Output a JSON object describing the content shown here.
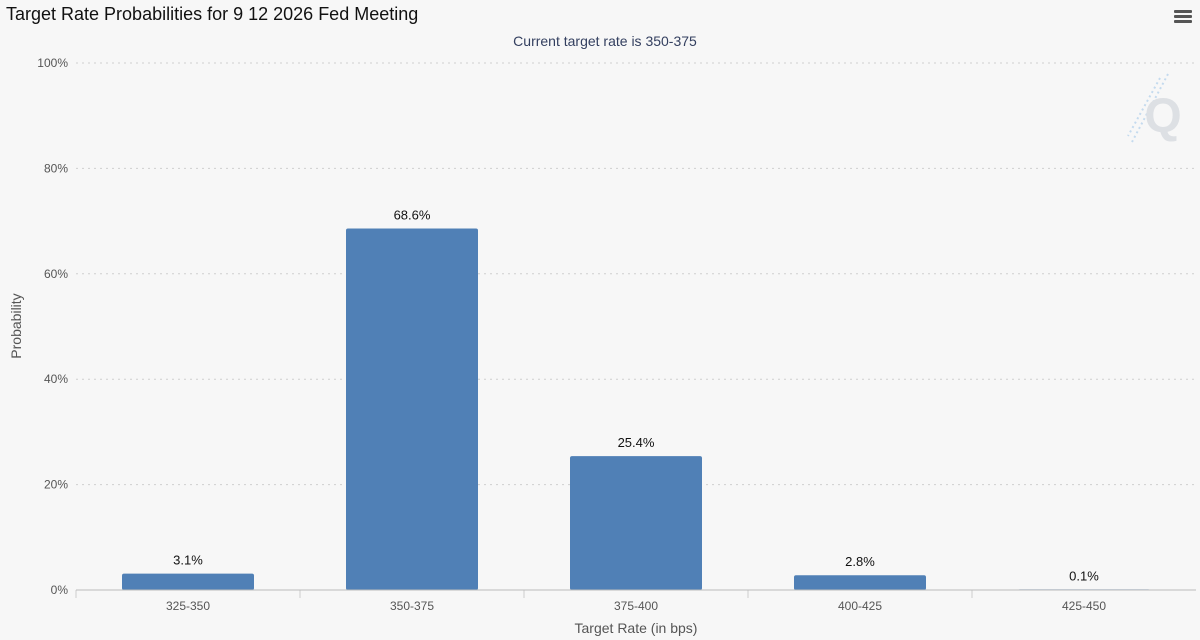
{
  "chart_data": {
    "type": "bar",
    "title": "Target Rate Probabilities for 9 12 2026 Fed Meeting",
    "subtitle": "Current target rate is 350-375",
    "xlabel": "Target Rate (in bps)",
    "ylabel": "Probability",
    "categories": [
      "325-350",
      "350-375",
      "375-400",
      "400-425",
      "425-450"
    ],
    "values": [
      3.1,
      68.6,
      25.4,
      2.8,
      0.1
    ],
    "value_labels": [
      "3.1%",
      "68.6%",
      "25.4%",
      "2.8%",
      "0.1%"
    ],
    "ylim": [
      0,
      100
    ],
    "yticks": [
      0,
      20,
      40,
      60,
      80,
      100
    ],
    "ytick_labels": [
      "0%",
      "20%",
      "40%",
      "60%",
      "80%",
      "100%"
    ],
    "grid": true,
    "bar_color": "#5080b6",
    "legend": "none"
  },
  "toolbar": {
    "menu_icon": "hamburger-menu-icon"
  },
  "watermark": {
    "text": "Q",
    "icon": "quikstrike-logo-icon"
  }
}
